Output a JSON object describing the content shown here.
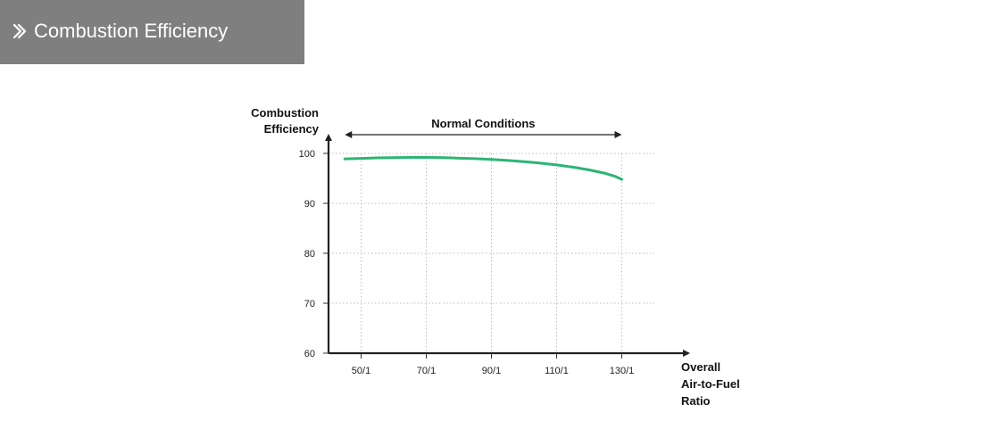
{
  "header": {
    "title": "Combustion Efficiency",
    "icon": "double-chevron-right-icon",
    "background_color": "#7f7f7f",
    "text_color": "#ffffff"
  },
  "chart_data": {
    "type": "line",
    "title": "",
    "ylabel_lines": [
      "Combustion",
      "Efficiency"
    ],
    "xlabel_lines": [
      "Overall",
      "Air-to-Fuel",
      "Ratio"
    ],
    "categories": [
      "50/1",
      "70/1",
      "90/1",
      "110/1",
      "130/1"
    ],
    "x_tick_values": [
      50,
      70,
      90,
      110,
      130
    ],
    "y_ticks": [
      60,
      70,
      80,
      90,
      100
    ],
    "ylim": [
      60,
      100
    ],
    "xlim": [
      40,
      140
    ],
    "grid": true,
    "grid_style": "dotted",
    "annotation": {
      "label": "Normal Conditions",
      "x_start": 45,
      "x_end": 130,
      "style": "double-arrow"
    },
    "series": [
      {
        "color": "#2bb673",
        "x": [
          45,
          50,
          55,
          60,
          65,
          70,
          75,
          80,
          85,
          90,
          95,
          100,
          105,
          110,
          115,
          120,
          125,
          128,
          130
        ],
        "y": [
          98.9,
          99.0,
          99.1,
          99.15,
          99.2,
          99.2,
          99.15,
          99.05,
          98.95,
          98.8,
          98.6,
          98.35,
          98.05,
          97.7,
          97.25,
          96.7,
          96.0,
          95.4,
          94.8
        ]
      }
    ]
  }
}
